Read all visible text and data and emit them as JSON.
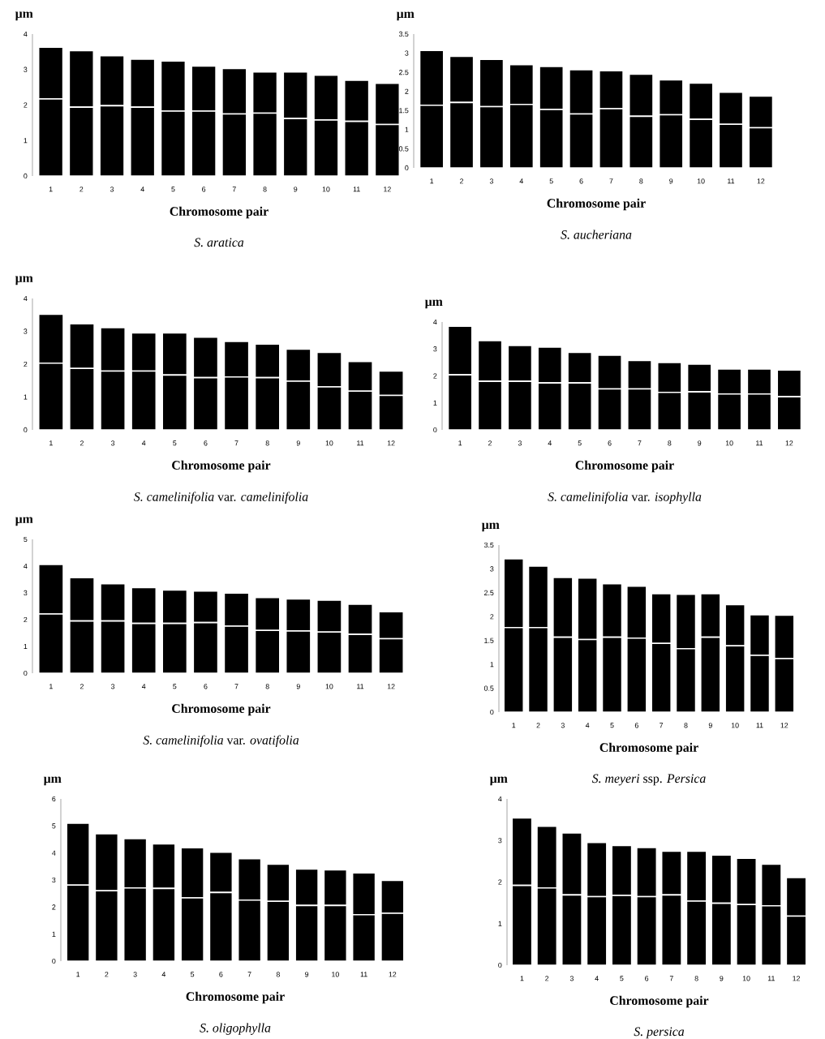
{
  "chart_data": [
    {
      "type": "bar",
      "stacked": true,
      "title": "*S. aratica*",
      "xlabel": "Chromosome pair",
      "ylabel": "μm",
      "categories": [
        "1",
        "2",
        "3",
        "4",
        "5",
        "6",
        "7",
        "8",
        "9",
        "10",
        "11",
        "12"
      ],
      "ylim": [
        0,
        4
      ],
      "yticks": [
        0,
        1,
        2,
        3,
        4
      ],
      "series": [
        {
          "color": "#000000",
          "values": [
            2.17,
            1.94,
            1.98,
            1.94,
            1.83,
            1.83,
            1.75,
            1.77,
            1.62,
            1.58,
            1.54,
            1.45
          ]
        },
        {
          "color": "#000000",
          "values": [
            1.46,
            1.59,
            1.41,
            1.35,
            1.41,
            1.27,
            1.28,
            1.16,
            1.31,
            1.26,
            1.16,
            1.16
          ]
        }
      ]
    },
    {
      "type": "bar",
      "stacked": true,
      "title": "*S. aucheriana*",
      "xlabel": "Chromosome pair",
      "ylabel": "μm",
      "categories": [
        "1",
        "2",
        "3",
        "4",
        "5",
        "6",
        "7",
        "8",
        "9",
        "10",
        "11",
        "12"
      ],
      "ylim": [
        0,
        3.5
      ],
      "yticks": [
        0,
        0.5,
        1,
        1.5,
        2,
        2.5,
        3,
        3.5
      ],
      "series": [
        {
          "color": "#000000",
          "values": [
            1.64,
            1.71,
            1.6,
            1.66,
            1.53,
            1.41,
            1.55,
            1.35,
            1.39,
            1.27,
            1.14,
            1.05
          ]
        },
        {
          "color": "#000000",
          "values": [
            1.43,
            1.21,
            1.24,
            1.04,
            1.12,
            1.16,
            0.99,
            1.1,
            0.91,
            0.95,
            0.84,
            0.83
          ]
        }
      ]
    },
    {
      "type": "bar",
      "stacked": true,
      "title": "*S. camelinifolia* var. *camelinifolia*",
      "xlabel": "Chromosome pair",
      "ylabel": "μm",
      "categories": [
        "1",
        "2",
        "3",
        "4",
        "5",
        "6",
        "7",
        "8",
        "9",
        "10",
        "11",
        "12"
      ],
      "ylim": [
        0,
        4
      ],
      "yticks": [
        0,
        1,
        2,
        3,
        4
      ],
      "series": [
        {
          "color": "#000000",
          "values": [
            2.03,
            1.87,
            1.79,
            1.79,
            1.67,
            1.59,
            1.61,
            1.59,
            1.48,
            1.31,
            1.18,
            1.05
          ]
        },
        {
          "color": "#000000",
          "values": [
            1.49,
            1.36,
            1.32,
            1.16,
            1.28,
            1.23,
            1.08,
            1.02,
            0.98,
            1.05,
            0.9,
            0.74
          ]
        }
      ]
    },
    {
      "type": "bar",
      "stacked": true,
      "title": "*S. camelinifolia* var. *isophylla*",
      "xlabel": "Chromosome pair",
      "ylabel": "μm",
      "categories": [
        "1",
        "2",
        "3",
        "4",
        "5",
        "6",
        "7",
        "8",
        "9",
        "10",
        "11",
        "12"
      ],
      "ylim": [
        0,
        4
      ],
      "yticks": [
        0,
        1,
        2,
        3,
        4
      ],
      "series": [
        {
          "color": "#000000",
          "values": [
            2.04,
            1.8,
            1.8,
            1.74,
            1.74,
            1.52,
            1.52,
            1.39,
            1.41,
            1.33,
            1.33,
            1.23
          ]
        },
        {
          "color": "#000000",
          "values": [
            1.8,
            1.51,
            1.33,
            1.33,
            1.13,
            1.25,
            1.05,
            1.11,
            1.03,
            0.93,
            0.93,
            0.99
          ]
        }
      ]
    },
    {
      "type": "bar",
      "stacked": true,
      "title": "*S. camelinifolia* var. *ovatifolia*",
      "xlabel": "Chromosome pair",
      "ylabel": "μm",
      "categories": [
        "1",
        "2",
        "3",
        "4",
        "5",
        "6",
        "7",
        "8",
        "9",
        "10",
        "11",
        "12"
      ],
      "ylim": [
        0,
        5
      ],
      "yticks": [
        0,
        1,
        2,
        3,
        4,
        5
      ],
      "series": [
        {
          "color": "#000000",
          "values": [
            2.21,
            1.95,
            1.95,
            1.86,
            1.86,
            1.89,
            1.76,
            1.6,
            1.58,
            1.54,
            1.45,
            1.29
          ]
        },
        {
          "color": "#000000",
          "values": [
            1.85,
            1.62,
            1.39,
            1.34,
            1.25,
            1.18,
            1.23,
            1.23,
            1.19,
            1.19,
            1.13,
            1.01
          ]
        }
      ]
    },
    {
      "type": "bar",
      "stacked": true,
      "title": "*S. meyeri* ssp. *Persica*",
      "xlabel": "Chromosome pair",
      "ylabel": "μm",
      "categories": [
        "1",
        "2",
        "3",
        "4",
        "5",
        "6",
        "7",
        "8",
        "9",
        "10",
        "11",
        "12"
      ],
      "ylim": [
        0,
        3.5
      ],
      "yticks": [
        0,
        0.5,
        1,
        1.5,
        2,
        2.5,
        3,
        3.5
      ],
      "series": [
        {
          "color": "#000000",
          "values": [
            1.77,
            1.77,
            1.57,
            1.52,
            1.57,
            1.55,
            1.44,
            1.33,
            1.57,
            1.39,
            1.19,
            1.12
          ]
        },
        {
          "color": "#000000",
          "values": [
            1.44,
            1.29,
            1.25,
            1.29,
            1.12,
            1.09,
            1.04,
            1.14,
            0.91,
            0.86,
            0.85,
            0.91
          ]
        }
      ]
    },
    {
      "type": "bar",
      "stacked": true,
      "title": "*S. oligophylla*",
      "xlabel": "Chromosome pair",
      "ylabel": "μm",
      "categories": [
        "1",
        "2",
        "3",
        "4",
        "5",
        "6",
        "7",
        "8",
        "9",
        "10",
        "11",
        "12"
      ],
      "ylim": [
        0,
        6
      ],
      "yticks": [
        0,
        1,
        2,
        3,
        4,
        5,
        6
      ],
      "series": [
        {
          "color": "#000000",
          "values": [
            2.81,
            2.6,
            2.71,
            2.69,
            2.34,
            2.54,
            2.26,
            2.21,
            2.06,
            2.06,
            1.72,
            1.77
          ]
        },
        {
          "color": "#000000",
          "values": [
            2.29,
            2.11,
            1.82,
            1.65,
            1.85,
            1.49,
            1.53,
            1.38,
            1.35,
            1.32,
            1.54,
            1.22
          ]
        }
      ]
    },
    {
      "type": "bar",
      "stacked": true,
      "title": "*S. persica*",
      "xlabel": "Chromosome pair",
      "ylabel": "μm",
      "categories": [
        "1",
        "2",
        "3",
        "4",
        "5",
        "6",
        "7",
        "8",
        "9",
        "10",
        "11",
        "12"
      ],
      "ylim": [
        0,
        4
      ],
      "yticks": [
        0,
        1,
        2,
        3,
        4
      ],
      "series": [
        {
          "color": "#000000",
          "values": [
            1.92,
            1.86,
            1.69,
            1.65,
            1.68,
            1.65,
            1.69,
            1.54,
            1.49,
            1.46,
            1.43,
            1.18
          ]
        },
        {
          "color": "#000000",
          "values": [
            1.62,
            1.48,
            1.49,
            1.3,
            1.2,
            1.18,
            1.05,
            1.2,
            1.16,
            1.11,
            1.0,
            0.93
          ]
        }
      ]
    }
  ]
}
